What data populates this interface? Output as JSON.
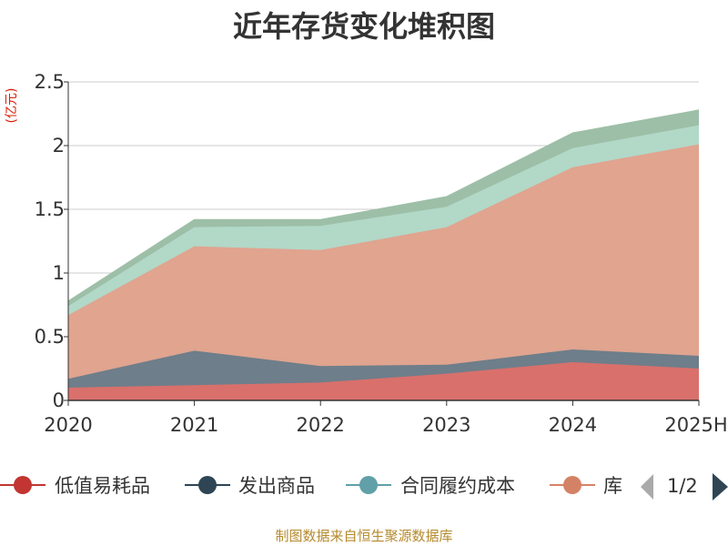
{
  "chart_data": {
    "type": "area",
    "title": "近年存货变化堆积图",
    "ylabel": "(亿元)",
    "xlabel": "",
    "categories": [
      "2020",
      "2021",
      "2022",
      "2023",
      "2024",
      "2025H"
    ],
    "ylim": [
      0,
      2.5
    ],
    "yticks": [
      "0",
      "0.5",
      "1",
      "1.5",
      "2",
      "2.5"
    ],
    "stacked": true,
    "grid": true,
    "series": [
      {
        "name": "低值易耗品",
        "color": "#d9706c",
        "values": [
          0.1,
          0.12,
          0.14,
          0.21,
          0.3,
          0.25
        ]
      },
      {
        "name": "发出商品",
        "color": "#6e7e8a",
        "values": [
          0.07,
          0.27,
          0.13,
          0.07,
          0.1,
          0.1
        ]
      },
      {
        "name": "",
        "color": "#e0a48f",
        "values": [
          0.5,
          0.82,
          0.91,
          1.08,
          1.43,
          1.66
        ]
      },
      {
        "name": "",
        "color": "#b2d8c8",
        "values": [
          0.07,
          0.15,
          0.19,
          0.16,
          0.15,
          0.15
        ]
      },
      {
        "name": "",
        "color": "#9dbfa7",
        "values": [
          0.04,
          0.06,
          0.05,
          0.08,
          0.12,
          0.12
        ]
      }
    ],
    "legend": {
      "placement": "bottom",
      "items": [
        {
          "label": "低值易耗品",
          "color": "#c23531"
        },
        {
          "label": "发出商品",
          "color": "#2f4554"
        },
        {
          "label": "合同履约成本",
          "color": "#61a0a8"
        },
        {
          "label": "库",
          "color": "#d48265"
        }
      ],
      "page": "1/2"
    }
  },
  "footer": "制图数据来自恒生聚源数据库"
}
